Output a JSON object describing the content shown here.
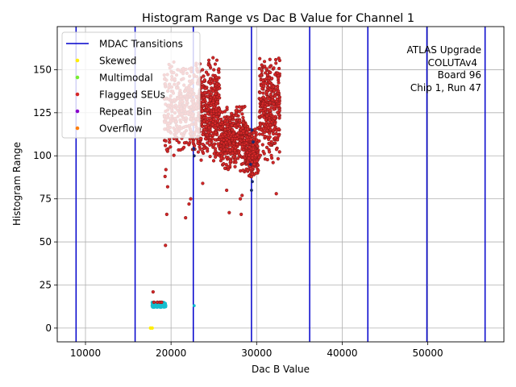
{
  "chart_data": {
    "type": "scatter",
    "title": "Histogram Range vs Dac B Value for Channel 1",
    "xlabel": "Dac B Value",
    "ylabel": "Histogram Range",
    "xlim": [
      6700,
      58900
    ],
    "ylim": [
      -8,
      175
    ],
    "xticks": [
      10000,
      20000,
      30000,
      40000,
      50000
    ],
    "xtick_labels": [
      "10000",
      "20000",
      "30000",
      "40000",
      "50000"
    ],
    "yticks": [
      0,
      25,
      50,
      75,
      100,
      125,
      150
    ],
    "ytick_labels": [
      "0",
      "25",
      "50",
      "75",
      "100",
      "125",
      "150"
    ],
    "grid": true,
    "legend_position": "top-left",
    "colors": {
      "mdac": "#0000cc",
      "skewed": "#ffee00",
      "multimodal": "#77ee33",
      "flagged": "#d62728",
      "flagged_edge": "#8b1a1a",
      "repeat": "#8800cc",
      "overflow": "#ff7f0e",
      "normal": "#17becf",
      "dark_points": "#1a2b6d"
    },
    "legend": [
      {
        "label": "MDAC Transitions",
        "kind": "line",
        "color": "#0000cc"
      },
      {
        "label": "Skewed",
        "kind": "dot",
        "color": "#ffee00"
      },
      {
        "label": "Multimodal",
        "kind": "dot",
        "color": "#77ee33"
      },
      {
        "label": "Flagged SEUs",
        "kind": "dot",
        "color": "#d62728"
      },
      {
        "label": "Repeat Bin",
        "kind": "dot",
        "color": "#8800cc"
      },
      {
        "label": "Overflow",
        "kind": "dot",
        "color": "#ff7f0e"
      }
    ],
    "annotation_lines": [
      "ATLAS Upgrade",
      "COLUTAv4",
      "Board 96",
      "Chip 1, Run 47"
    ],
    "mdac_transitions": [
      8900,
      15800,
      22600,
      29400,
      36200,
      43000,
      49900,
      56700
    ],
    "flagged_clusters": [
      {
        "x_range": [
          19200,
          22800
        ],
        "y_range": [
          100,
          155
        ],
        "count": 320
      },
      {
        "x_range": [
          22900,
          25700
        ],
        "y_range": [
          95,
          158
        ],
        "count": 420
      },
      {
        "x_range": [
          25700,
          28800
        ],
        "y_range": [
          90,
          130
        ],
        "count": 420
      },
      {
        "x_range": [
          28800,
          30200
        ],
        "y_range": [
          85,
          118
        ],
        "count": 260
      },
      {
        "x_range": [
          30300,
          32700
        ],
        "y_range": [
          95,
          160
        ],
        "count": 340
      }
    ],
    "flagged_outliers": [
      [
        19350,
        48
      ],
      [
        21700,
        64
      ],
      [
        22100,
        72
      ],
      [
        22300,
        75
      ],
      [
        19500,
        66
      ],
      [
        26800,
        67
      ],
      [
        28200,
        66
      ],
      [
        28100,
        75
      ],
      [
        32300,
        78
      ],
      [
        23700,
        84
      ],
      [
        19300,
        88
      ],
      [
        19400,
        92
      ],
      [
        19600,
        82
      ],
      [
        26500,
        80
      ],
      [
        28300,
        77
      ]
    ],
    "normal_cluster": {
      "x_range": [
        17700,
        19400
      ],
      "y_range": [
        12,
        15
      ],
      "count": 140
    },
    "normal_outliers": [
      [
        22700,
        13
      ]
    ],
    "flagged_low": [
      [
        17900,
        21
      ],
      [
        18000,
        15
      ],
      [
        18400,
        15
      ],
      [
        18700,
        15
      ],
      [
        18900,
        15
      ]
    ],
    "skewed_points": [
      [
        17600,
        0
      ],
      [
        17800,
        0
      ]
    ],
    "dark_points": [
      [
        29400,
        80
      ],
      [
        29500,
        85
      ],
      [
        29300,
        95
      ],
      [
        29600,
        108
      ],
      [
        29450,
        115
      ],
      [
        22700,
        100
      ],
      [
        22650,
        104
      ]
    ]
  }
}
